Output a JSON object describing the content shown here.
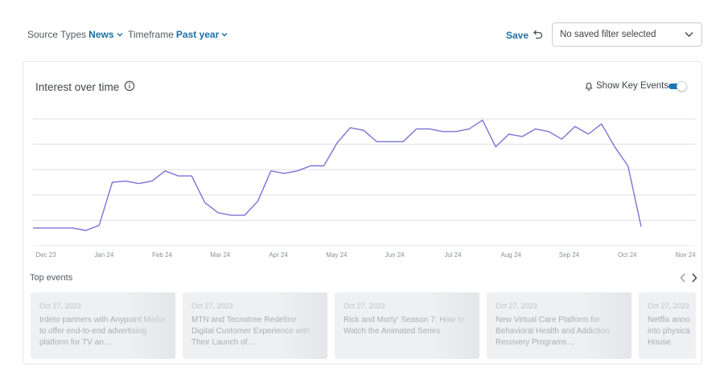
{
  "filters": {
    "source_label": "Source Types",
    "source_value": "News",
    "timeframe_label": "Timeframe",
    "timeframe_value": "Past year"
  },
  "actions": {
    "save_label": "Save",
    "saved_filter_select_value": "No saved filter selected"
  },
  "card": {
    "title": "Interest over time",
    "key_events_label": "Show Key Events",
    "key_events_on": true
  },
  "top_events": {
    "title": "Top events",
    "items": [
      {
        "date": "Oct 27, 2023",
        "title": "Irdeto partners with Anypoint Media to offer end-to-end advertising platform for TV an…"
      },
      {
        "date": "Oct 27, 2023",
        "title": "MTN and Tecnotree Redefine Digital Customer Experience with Their Launch of…"
      },
      {
        "date": "Oct 27, 2023",
        "title": "Rick and Morty' Season 7: How to Watch the Animated Series"
      },
      {
        "date": "Oct 27, 2023",
        "title": "New Virtual Care Platform for Behavioral Health and Addiction Recovery Programs…"
      },
      {
        "date": "Oct 27, 2023",
        "title": "Netflix anno into physica House"
      }
    ]
  },
  "colors": {
    "line": "#7b73d6",
    "accent": "#1d6fa5",
    "toggle": "#1a76b8"
  },
  "chart_data": {
    "type": "line",
    "title": "Interest over time",
    "xlabel": "",
    "ylabel": "",
    "ylim": [
      0,
      100
    ],
    "grid": true,
    "x_ticks": [
      "Dec 23",
      "Jan 24",
      "Feb 24",
      "Mar 24",
      "Apr 24",
      "May 24",
      "Jun 24",
      "Jul 24",
      "Aug 24",
      "Sep 24",
      "Oct 24",
      "Nov 24"
    ],
    "series": [
      {
        "values": [
          14,
          14,
          14,
          14,
          12,
          16,
          50,
          51,
          49,
          51,
          59,
          55,
          55,
          34,
          26,
          24,
          24,
          35,
          59,
          57,
          59,
          63,
          63,
          81,
          93,
          91,
          82,
          82,
          82,
          92,
          92,
          90,
          90,
          92,
          99,
          78,
          88,
          86,
          92,
          90,
          84,
          94,
          88,
          96,
          78,
          63,
          15
        ]
      }
    ]
  }
}
